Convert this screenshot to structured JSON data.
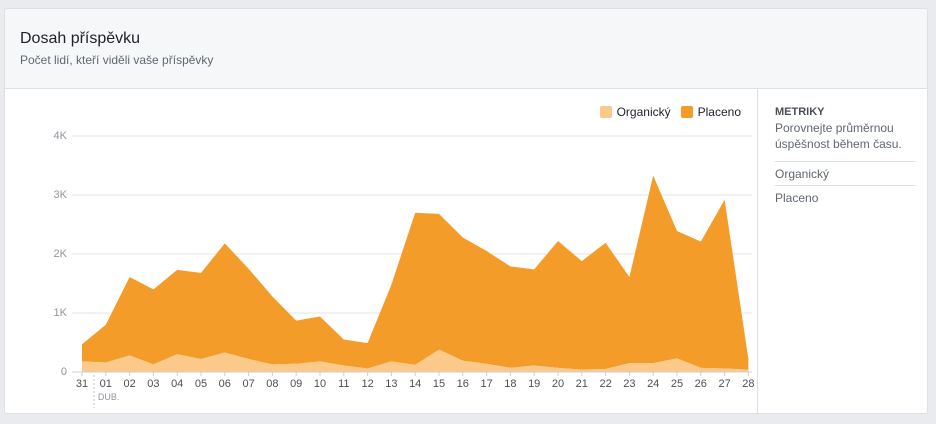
{
  "header": {
    "title": "Dosah příspěvku",
    "subtitle": "Počet lidí, kteří viděli vaše příspěvky"
  },
  "sidebar": {
    "heading": "METRIKY",
    "description": "Porovnejte průměrnou úspěšnost během času.",
    "items": [
      "Organický",
      "Placeno"
    ]
  },
  "legend": [
    {
      "label": "Organický",
      "color": "#fbc98a"
    },
    {
      "label": "Placeno",
      "color": "#f39c2a"
    }
  ],
  "chart_data": {
    "type": "area",
    "stacked": true,
    "categories": [
      "31",
      "01",
      "02",
      "03",
      "04",
      "05",
      "06",
      "07",
      "08",
      "09",
      "10",
      "11",
      "12",
      "13",
      "14",
      "15",
      "16",
      "17",
      "18",
      "19",
      "20",
      "21",
      "22",
      "23",
      "24",
      "25",
      "26",
      "27",
      "28"
    ],
    "month_label": "DUB.",
    "y_ticks": [
      "0",
      "1K",
      "2K",
      "3K",
      "4K"
    ],
    "ylim": [
      0,
      4000
    ],
    "grid": true,
    "legend_position": "top-right",
    "series": [
      {
        "name": "Organický",
        "color": "#fbc98a",
        "values": [
          180,
          160,
          280,
          130,
          300,
          220,
          330,
          220,
          130,
          140,
          180,
          110,
          60,
          180,
          120,
          380,
          190,
          140,
          70,
          110,
          70,
          40,
          50,
          150,
          150,
          230,
          70,
          60,
          40
        ]
      },
      {
        "name": "Placeno",
        "color": "#f39c2a",
        "values": [
          290,
          640,
          1330,
          1270,
          1430,
          1460,
          1850,
          1530,
          1150,
          730,
          760,
          440,
          430,
          1300,
          2580,
          2300,
          2090,
          1910,
          1720,
          1630,
          2150,
          1840,
          2140,
          1460,
          3180,
          2160,
          2140,
          2860,
          180
        ]
      }
    ]
  }
}
